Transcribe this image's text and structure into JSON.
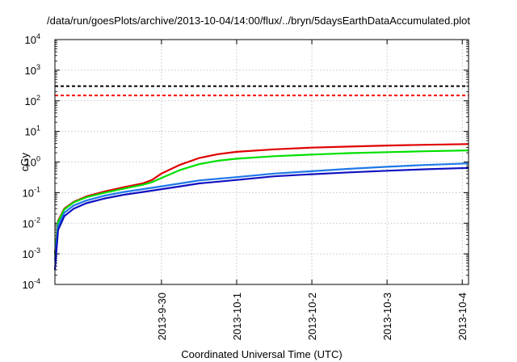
{
  "chart_data": {
    "type": "line",
    "title": "/data/run/goesPlots/archive/2013-10-04/14:00/flux/../bryn/5daysEarthDataAccumulated.plot",
    "xlabel": "Coordinated Universal Time (UTC)",
    "ylabel": "cGy",
    "yscale": "log",
    "ylim": [
      0.0001,
      10000
    ],
    "xlim": [
      "2013-09-29T02:00",
      "2013-10-04T14:00"
    ],
    "x_ticks": [
      "2013-9-30",
      "2013-10-1",
      "2013-10-2",
      "2013-10-3",
      "2013-10-4"
    ],
    "y_ticks": [
      {
        "base": "10",
        "exp": "-4",
        "value": 0.0001
      },
      {
        "base": "10",
        "exp": "-3",
        "value": 0.001
      },
      {
        "base": "10",
        "exp": "-2",
        "value": 0.01
      },
      {
        "base": "10",
        "exp": "-1",
        "value": 0.1
      },
      {
        "base": "10",
        "exp": "0",
        "value": 1
      },
      {
        "base": "10",
        "exp": "1",
        "value": 10
      },
      {
        "base": "10",
        "exp": "2",
        "value": 100
      },
      {
        "base": "10",
        "exp": "3",
        "value": 1000
      },
      {
        "base": "10",
        "exp": "4",
        "value": 10000
      }
    ],
    "grid": true,
    "thresholds": [
      {
        "value": 300,
        "color": "#000000",
        "style": "dashed"
      },
      {
        "value": 150,
        "color": "#ff0000",
        "style": "dashed"
      }
    ],
    "series": [
      {
        "color": "#e00000",
        "points": [
          [
            "2013-09-29T02:00",
            0.001
          ],
          [
            "2013-09-29T03:00",
            0.012
          ],
          [
            "2013-09-29T05:00",
            0.03
          ],
          [
            "2013-09-29T08:00",
            0.05
          ],
          [
            "2013-09-29T12:00",
            0.075
          ],
          [
            "2013-09-29T18:00",
            0.11
          ],
          [
            "2013-09-30T00:00",
            0.15
          ],
          [
            "2013-09-30T06:00",
            0.2
          ],
          [
            "2013-09-30T09:00",
            0.26
          ],
          [
            "2013-09-30T12:00",
            0.42
          ],
          [
            "2013-09-30T18:00",
            0.82
          ],
          [
            "2013-10-01T00:00",
            1.35
          ],
          [
            "2013-10-01T06:00",
            1.8
          ],
          [
            "2013-10-01T12:00",
            2.15
          ],
          [
            "2013-10-02T00:00",
            2.6
          ],
          [
            "2013-10-02T12:00",
            2.95
          ],
          [
            "2013-10-03T00:00",
            3.2
          ],
          [
            "2013-10-03T12:00",
            3.45
          ],
          [
            "2013-10-04T00:00",
            3.65
          ],
          [
            "2013-10-04T14:00",
            3.85
          ]
        ]
      },
      {
        "color": "#00e000",
        "points": [
          [
            "2013-09-29T02:00",
            0.0009
          ],
          [
            "2013-09-29T03:00",
            0.011
          ],
          [
            "2013-09-29T05:00",
            0.028
          ],
          [
            "2013-09-29T08:00",
            0.048
          ],
          [
            "2013-09-29T12:00",
            0.07
          ],
          [
            "2013-09-29T18:00",
            0.1
          ],
          [
            "2013-09-30T00:00",
            0.135
          ],
          [
            "2013-09-30T06:00",
            0.18
          ],
          [
            "2013-09-30T09:00",
            0.22
          ],
          [
            "2013-09-30T12:00",
            0.3
          ],
          [
            "2013-09-30T18:00",
            0.55
          ],
          [
            "2013-10-01T00:00",
            0.85
          ],
          [
            "2013-10-01T06:00",
            1.1
          ],
          [
            "2013-10-01T12:00",
            1.28
          ],
          [
            "2013-10-02T00:00",
            1.55
          ],
          [
            "2013-10-02T12:00",
            1.75
          ],
          [
            "2013-10-03T00:00",
            1.95
          ],
          [
            "2013-10-03T12:00",
            2.1
          ],
          [
            "2013-10-04T00:00",
            2.25
          ],
          [
            "2013-10-04T14:00",
            2.4
          ]
        ]
      },
      {
        "color": "#1e78e8",
        "points": [
          [
            "2013-09-29T02:00",
            0.0006
          ],
          [
            "2013-09-29T03:00",
            0.008
          ],
          [
            "2013-09-29T05:00",
            0.022
          ],
          [
            "2013-09-29T08:00",
            0.038
          ],
          [
            "2013-09-29T12:00",
            0.055
          ],
          [
            "2013-09-29T18:00",
            0.08
          ],
          [
            "2013-09-30T00:00",
            0.105
          ],
          [
            "2013-09-30T06:00",
            0.13
          ],
          [
            "2013-09-30T12:00",
            0.16
          ],
          [
            "2013-09-30T18:00",
            0.2
          ],
          [
            "2013-10-01T00:00",
            0.25
          ],
          [
            "2013-10-01T12:00",
            0.32
          ],
          [
            "2013-10-02T00:00",
            0.42
          ],
          [
            "2013-10-02T12:00",
            0.5
          ],
          [
            "2013-10-03T00:00",
            0.6
          ],
          [
            "2013-10-03T12:00",
            0.7
          ],
          [
            "2013-10-04T00:00",
            0.8
          ],
          [
            "2013-10-04T14:00",
            0.9
          ]
        ]
      },
      {
        "color": "#1010c0",
        "points": [
          [
            "2013-09-29T02:00",
            0.0003
          ],
          [
            "2013-09-29T03:00",
            0.006
          ],
          [
            "2013-09-29T05:00",
            0.017
          ],
          [
            "2013-09-29T08:00",
            0.03
          ],
          [
            "2013-09-29T12:00",
            0.045
          ],
          [
            "2013-09-29T18:00",
            0.065
          ],
          [
            "2013-09-30T00:00",
            0.085
          ],
          [
            "2013-09-30T06:00",
            0.105
          ],
          [
            "2013-09-30T12:00",
            0.13
          ],
          [
            "2013-09-30T18:00",
            0.16
          ],
          [
            "2013-10-01T00:00",
            0.2
          ],
          [
            "2013-10-01T12:00",
            0.26
          ],
          [
            "2013-10-02T00:00",
            0.34
          ],
          [
            "2013-10-02T12:00",
            0.4
          ],
          [
            "2013-10-03T00:00",
            0.46
          ],
          [
            "2013-10-03T12:00",
            0.52
          ],
          [
            "2013-10-04T00:00",
            0.58
          ],
          [
            "2013-10-04T14:00",
            0.64
          ]
        ]
      }
    ]
  }
}
